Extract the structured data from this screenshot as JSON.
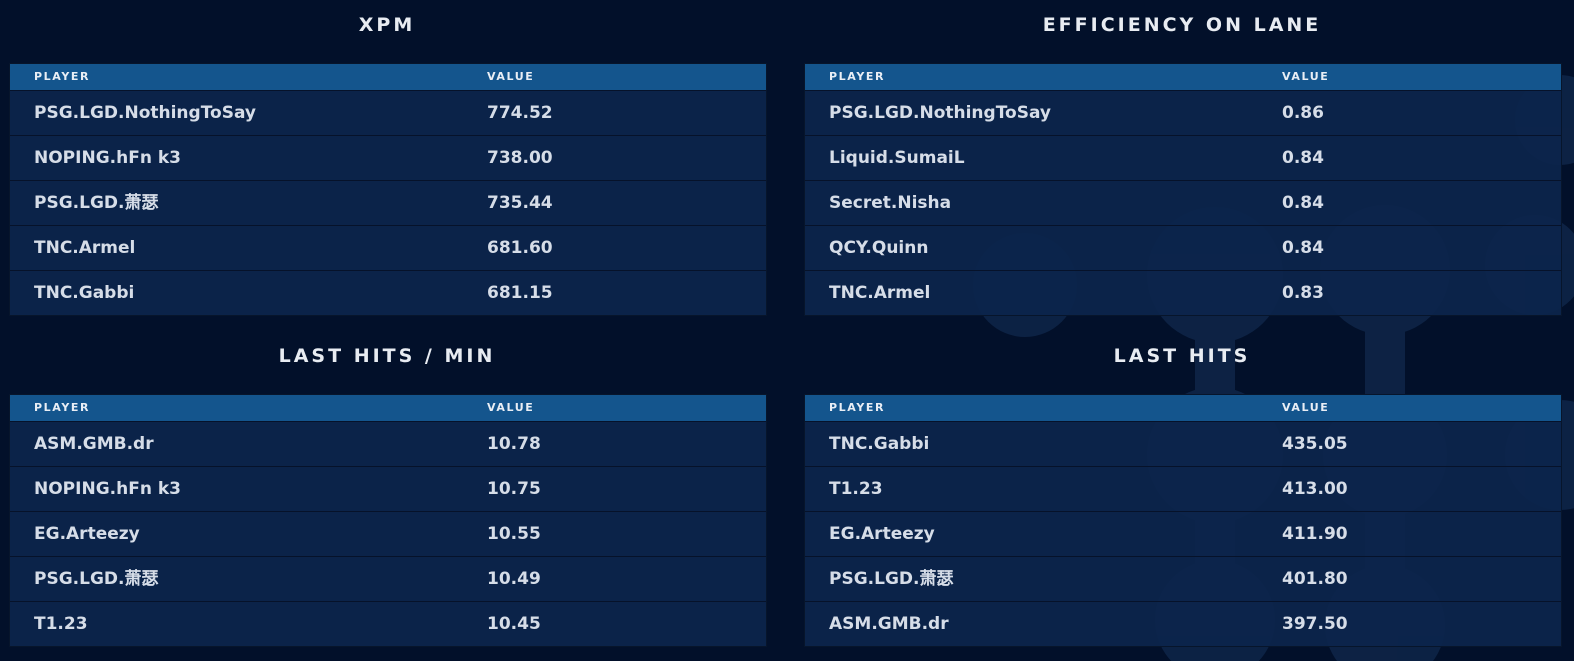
{
  "colors": {
    "background": "#02102a",
    "header_bar": "#14558d",
    "row": "#0c254c",
    "text": "#d6dde8"
  },
  "panels": [
    {
      "title": "XPM",
      "col_player": "PLAYER",
      "col_value": "VALUE",
      "rows": [
        {
          "player": "PSG.LGD.NothingToSay",
          "value": "774.52"
        },
        {
          "player": "NOPING.hFn k3",
          "value": "738.00"
        },
        {
          "player": "PSG.LGD.萧瑟",
          "value": "735.44"
        },
        {
          "player": "TNC.Armel",
          "value": "681.60"
        },
        {
          "player": "TNC.Gabbi",
          "value": "681.15"
        }
      ]
    },
    {
      "title": "EFFICIENCY ON LANE",
      "col_player": "PLAYER",
      "col_value": "VALUE",
      "rows": [
        {
          "player": "PSG.LGD.NothingToSay",
          "value": "0.86"
        },
        {
          "player": "Liquid.SumaiL",
          "value": "0.84"
        },
        {
          "player": "Secret.Nisha",
          "value": "0.84"
        },
        {
          "player": "QCY.Quinn",
          "value": "0.84"
        },
        {
          "player": "TNC.Armel",
          "value": "0.83"
        }
      ]
    },
    {
      "title": "LAST HITS / MIN",
      "col_player": "PLAYER",
      "col_value": "VALUE",
      "rows": [
        {
          "player": "ASM.GMB.dr",
          "value": "10.78"
        },
        {
          "player": "NOPING.hFn k3",
          "value": "10.75"
        },
        {
          "player": "EG.Arteezy",
          "value": "10.55"
        },
        {
          "player": "PSG.LGD.萧瑟",
          "value": "10.49"
        },
        {
          "player": "T1.23",
          "value": "10.45"
        }
      ]
    },
    {
      "title": "LAST HITS",
      "col_player": "PLAYER",
      "col_value": "VALUE",
      "rows": [
        {
          "player": "TNC.Gabbi",
          "value": "435.05"
        },
        {
          "player": "T1.23",
          "value": "413.00"
        },
        {
          "player": "EG.Arteezy",
          "value": "411.90"
        },
        {
          "player": "PSG.LGD.萧瑟",
          "value": "401.80"
        },
        {
          "player": "ASM.GMB.dr",
          "value": "397.50"
        }
      ]
    }
  ]
}
